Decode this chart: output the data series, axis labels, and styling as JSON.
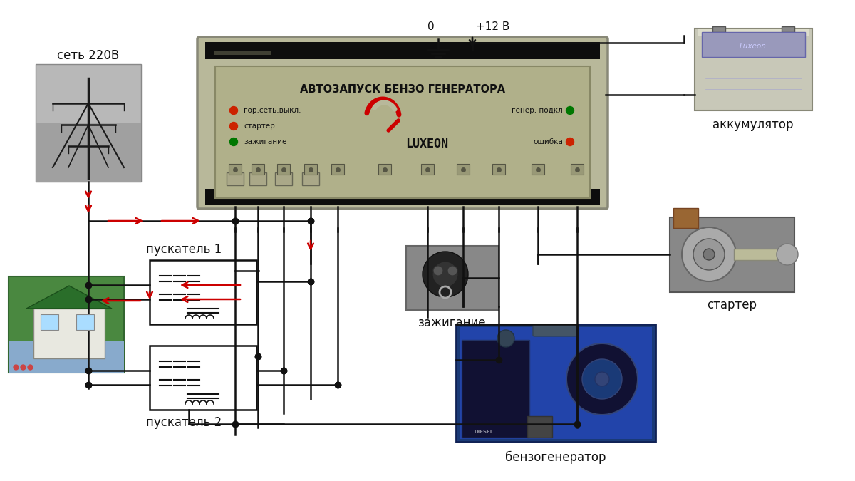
{
  "bg_color": "#ffffff",
  "wire_color": "#111111",
  "arrow_color": "#cc0000",
  "avr_color": "#b8b89a",
  "avr_dark": "#2a2a1a",
  "labels": {
    "network": "сеть 220В",
    "kontaktor1": "пускатель 1",
    "kontaktor2": "пускатель 2",
    "battery": "аккумулятор",
    "starter": "стартер",
    "ignition": "зажигание",
    "generator": "бензогенератор",
    "avr_title": "АВТОЗАПУСК БЕНЗО ГЕНЕРАТОРА",
    "led1": "гор.сеть.выкл.",
    "led2": "стартер",
    "led3": "зажигание",
    "led4": "генер. подкл",
    "led5": "ошибка",
    "luxeon": "LUXEON",
    "voltage0": "0",
    "voltage12": "+12 В"
  }
}
